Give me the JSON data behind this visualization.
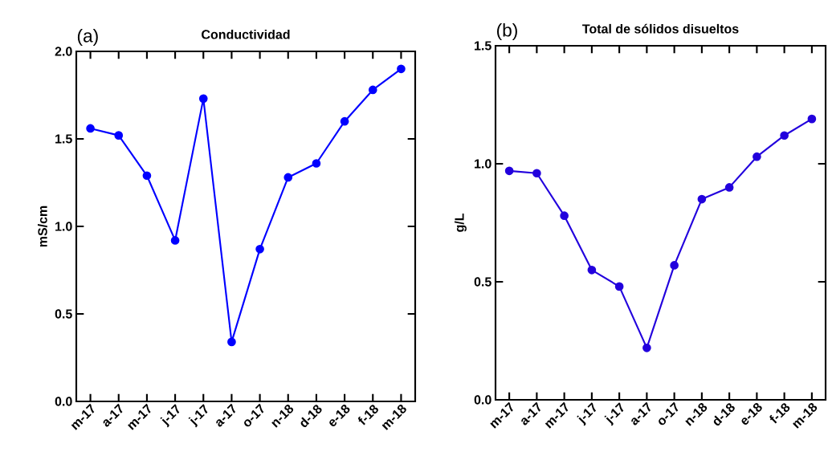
{
  "chart_data": [
    {
      "type": "line",
      "title": "Conductividad",
      "ylabel": "mS/cm",
      "annotations": [
        "(a)"
      ],
      "categories": [
        "m-17",
        "a-17",
        "m-17",
        "j-17",
        "j-17",
        "a-17",
        "o-17",
        "n-18",
        "d-18",
        "e-18",
        "f-18",
        "m-18"
      ],
      "series": [
        {
          "color": "#0000ff",
          "values": [
            1.56,
            1.52,
            1.29,
            0.92,
            1.73,
            0.34,
            0.87,
            1.28,
            1.36,
            1.6,
            1.78,
            1.9
          ]
        }
      ],
      "ylim": [
        0,
        2.0
      ],
      "yticks": [
        {
          "value": 0,
          "label": "0.0"
        },
        {
          "value": 0.5,
          "label": "0.5"
        },
        {
          "value": 1.0,
          "label": "1.0"
        },
        {
          "value": 1.5,
          "label": "1.5"
        },
        {
          "value": 2.0,
          "label": "2.0"
        }
      ],
      "marker": "circle",
      "line_style": "solid"
    },
    {
      "type": "line",
      "title": "Total de sólidos disueltos",
      "ylabel": "g/L",
      "annotations": [
        "(b)"
      ],
      "categories": [
        "m-17",
        "a-17",
        "m-17",
        "j-17",
        "j-17",
        "a-17",
        "o-17",
        "n-18",
        "d-18",
        "e-18",
        "f-18",
        "m-18"
      ],
      "series": [
        {
          "color": "#2200dd",
          "values": [
            0.97,
            0.96,
            0.78,
            0.55,
            0.48,
            0.22,
            0.57,
            0.85,
            0.9,
            1.03,
            1.12,
            1.19
          ]
        }
      ],
      "ylim": [
        0,
        1.5
      ],
      "yticks": [
        {
          "value": 0,
          "label": "0.0"
        },
        {
          "value": 0.5,
          "label": "0.5"
        },
        {
          "value": 1.0,
          "label": "1.0"
        },
        {
          "value": 1.5,
          "label": "1.5"
        }
      ],
      "marker": "circle",
      "line_style": "solid"
    }
  ]
}
